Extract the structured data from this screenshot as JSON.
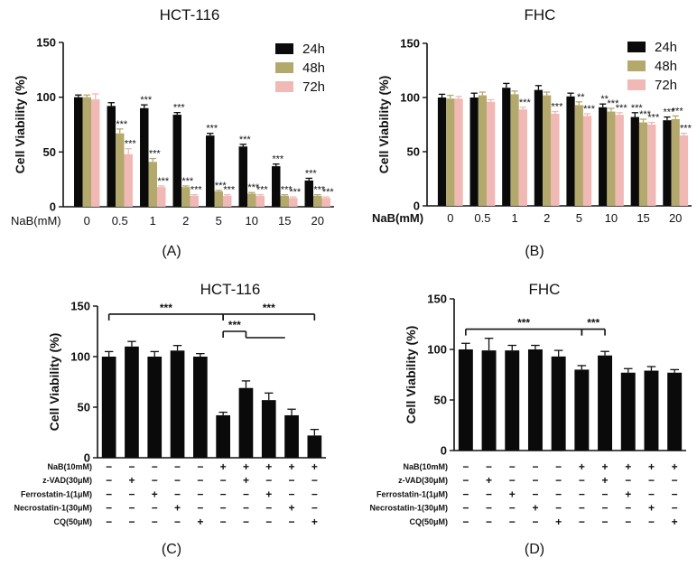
{
  "colors": {
    "c24": "#0a0a0a",
    "c48": "#b4a96c",
    "c72": "#f0b9b5",
    "black": "#111111"
  },
  "chart_data": [
    {
      "id": "A",
      "type": "bar",
      "title": "HCT-116",
      "panel_label": "(A)",
      "ylabel": "Cell Viability (%)",
      "xlabel": "NaB(mM)",
      "ylim": [
        0,
        150
      ],
      "yticks": [
        0,
        50,
        100,
        150
      ],
      "categories": [
        "0",
        "0.5",
        "1",
        "2",
        "5",
        "10",
        "15",
        "20"
      ],
      "legend_position": "top-right",
      "series": [
        {
          "name": "24h",
          "color": "#0a0a0a",
          "values": [
            100,
            92,
            90,
            84,
            65,
            55,
            37,
            24
          ],
          "errors": [
            2,
            3,
            3,
            2,
            2,
            2,
            2,
            2
          ],
          "sig": [
            "",
            "",
            "***",
            "***",
            "***",
            "***",
            "***",
            "***"
          ]
        },
        {
          "name": "48h",
          "color": "#b4a96c",
          "values": [
            100,
            67,
            41,
            18,
            14,
            12,
            10,
            10
          ],
          "errors": [
            2,
            4,
            3,
            1,
            1,
            1,
            1,
            1
          ],
          "sig": [
            "",
            "***",
            "***",
            "***",
            "***",
            "***",
            "***",
            "***"
          ]
        },
        {
          "name": "72h",
          "color": "#f0b9b5",
          "values": [
            98,
            48,
            18,
            10,
            10,
            10,
            8,
            8
          ],
          "errors": [
            5,
            5,
            1,
            1,
            1,
            1,
            1,
            1
          ],
          "sig": [
            "",
            "***",
            "***",
            "***",
            "***",
            "***",
            "***",
            "***"
          ]
        }
      ]
    },
    {
      "id": "B",
      "type": "bar",
      "title": "FHC",
      "panel_label": "(B)",
      "ylabel": "Cell Viability (%)",
      "xlabel": "NaB(mM)",
      "ylim": [
        0,
        150
      ],
      "yticks": [
        0,
        50,
        100,
        150
      ],
      "categories": [
        "0",
        "0.5",
        "1",
        "2",
        "5",
        "10",
        "15",
        "20"
      ],
      "legend_position": "top-right",
      "series": [
        {
          "name": "24h",
          "color": "#0a0a0a",
          "values": [
            100,
            100,
            109,
            107,
            101,
            91,
            82,
            79
          ],
          "errors": [
            3,
            4,
            4,
            4,
            3,
            3,
            4,
            3
          ],
          "sig": [
            "",
            "",
            "",
            "",
            "",
            "**",
            "***",
            "***"
          ]
        },
        {
          "name": "48h",
          "color": "#b4a96c",
          "values": [
            99,
            102,
            103,
            102,
            93,
            87,
            77,
            80
          ],
          "errors": [
            3,
            3,
            3,
            3,
            3,
            3,
            3,
            3
          ],
          "sig": [
            "",
            "",
            "",
            "",
            "**",
            "***",
            "***",
            "***"
          ]
        },
        {
          "name": "72h",
          "color": "#f0b9b5",
          "values": [
            99,
            96,
            89,
            85,
            83,
            84,
            75,
            65
          ],
          "errors": [
            2,
            2,
            2,
            2,
            2,
            2,
            2,
            2
          ],
          "sig": [
            "",
            "",
            "***",
            "***",
            "***",
            "***",
            "***",
            "***"
          ]
        }
      ]
    },
    {
      "id": "C",
      "type": "bar",
      "title": "HCT-116",
      "panel_label": "(C)",
      "ylabel": "Cell Viability (%)",
      "ylim": [
        0,
        150
      ],
      "yticks": [
        0,
        50,
        100,
        150
      ],
      "values": [
        100,
        110,
        100,
        106,
        100,
        42,
        69,
        57,
        42,
        22
      ],
      "errors": [
        5,
        5,
        5,
        5,
        3,
        3,
        7,
        7,
        6,
        6
      ],
      "treatment_rows": [
        {
          "label": "NaB(10mM)",
          "signs": [
            "−",
            "−",
            "−",
            "−",
            "−",
            "+",
            "+",
            "+",
            "+",
            "+"
          ]
        },
        {
          "label": "z-VAD(30μM)",
          "signs": [
            "−",
            "+",
            "−",
            "−",
            "−",
            "−",
            "+",
            "−",
            "−",
            "−"
          ]
        },
        {
          "label": "Ferrostatin-1(1μM)",
          "signs": [
            "−",
            "−",
            "+",
            "−",
            "−",
            "−",
            "−",
            "+",
            "−",
            "−"
          ]
        },
        {
          "label": "Necrostatin-1(30μM)",
          "signs": [
            "−",
            "−",
            "−",
            "+",
            "−",
            "−",
            "−",
            "−",
            "+",
            "−"
          ]
        },
        {
          "label": "CQ(50μM)",
          "signs": [
            "−",
            "−",
            "−",
            "−",
            "+",
            "−",
            "−",
            "−",
            "−",
            "+"
          ]
        }
      ],
      "significance": [
        {
          "label": "***",
          "from": 0,
          "to": 5,
          "level": 142
        },
        {
          "label": "***",
          "from": 5,
          "to": 9,
          "level": 142
        },
        {
          "label": "***",
          "from": 5,
          "to": 6,
          "level": 125
        }
      ]
    },
    {
      "id": "D",
      "type": "bar",
      "title": "FHC",
      "panel_label": "(D)",
      "ylabel": "Cell Viability (%)",
      "ylim": [
        0,
        150
      ],
      "yticks": [
        0,
        50,
        100,
        150
      ],
      "values": [
        100,
        99,
        99,
        100,
        93,
        80,
        94,
        77,
        79,
        77
      ],
      "errors": [
        6,
        12,
        5,
        4,
        6,
        4,
        4,
        4,
        4,
        3
      ],
      "treatment_rows": [
        {
          "label": "NaB(10mM)",
          "signs": [
            "−",
            "−",
            "−",
            "−",
            "−",
            "+",
            "+",
            "+",
            "+",
            "+"
          ]
        },
        {
          "label": "z-VAD(30μM)",
          "signs": [
            "−",
            "+",
            "−",
            "−",
            "−",
            "−",
            "+",
            "−",
            "−",
            "−"
          ]
        },
        {
          "label": "Ferrostatin-1(1μM)",
          "signs": [
            "−",
            "−",
            "+",
            "−",
            "−",
            "−",
            "−",
            "+",
            "−",
            "−"
          ]
        },
        {
          "label": "Necrostatin-1(30μM)",
          "signs": [
            "−",
            "−",
            "−",
            "+",
            "−",
            "−",
            "−",
            "−",
            "+",
            "−"
          ]
        },
        {
          "label": "CQ(50μM)",
          "signs": [
            "−",
            "−",
            "−",
            "−",
            "+",
            "−",
            "−",
            "−",
            "−",
            "+"
          ]
        }
      ],
      "significance": [
        {
          "label": "***",
          "from": 0,
          "to": 5,
          "level": 120
        },
        {
          "label": "***",
          "from": 5,
          "to": 6,
          "level": 120
        }
      ]
    }
  ]
}
